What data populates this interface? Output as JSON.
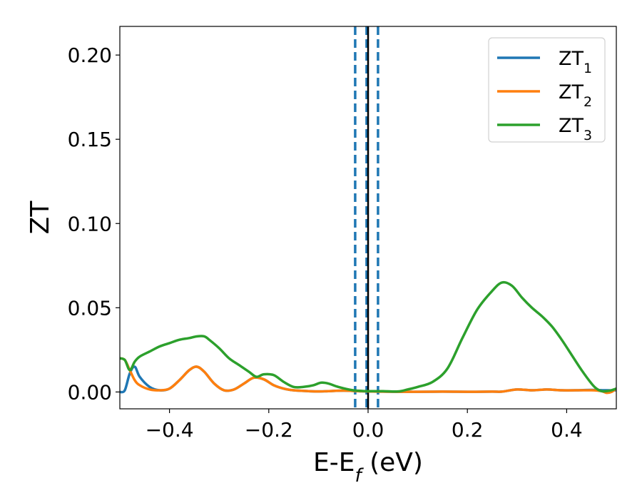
{
  "chart_data": {
    "type": "line",
    "title": "",
    "xlabel": "E-E",
    "xlabel_sub": "f",
    "xlabel_unit": " (eV)",
    "ylabel": "ZT",
    "xlim": [
      -0.5,
      0.5
    ],
    "ylim": [
      -0.01,
      0.217
    ],
    "xticks": [
      -0.4,
      -0.2,
      0.0,
      0.2,
      0.4
    ],
    "xtick_labels": [
      "−0.4",
      "−0.2",
      "0.0",
      "0.2",
      "0.4"
    ],
    "yticks": [
      0.0,
      0.05,
      0.1,
      0.15,
      0.2
    ],
    "ytick_labels": [
      "0.00",
      "0.05",
      "0.10",
      "0.15",
      "0.20"
    ],
    "grid": false,
    "legend_position": "top-right",
    "vertical_lines": [
      {
        "x": -0.026,
        "style": "dashed",
        "color": "#1f77b4"
      },
      {
        "x": -0.003,
        "style": "dashed",
        "color": "#1f77b4"
      },
      {
        "x": 0.0,
        "style": "solid",
        "color": "#000000"
      },
      {
        "x": 0.02,
        "style": "dashed",
        "color": "#1f77b4"
      }
    ],
    "series": [
      {
        "name": "ZT",
        "name_sub": "1",
        "color": "#1f77b4",
        "x": [
          -0.5,
          -0.49,
          -0.48,
          -0.47,
          -0.46,
          -0.44,
          -0.42,
          -0.4,
          -0.38,
          -0.36,
          -0.345,
          -0.33,
          -0.31,
          -0.29,
          -0.27,
          -0.25,
          -0.23,
          -0.21,
          -0.19,
          -0.17,
          -0.15,
          -0.12,
          -0.1,
          -0.08,
          -0.05,
          -0.02,
          0.0,
          0.03,
          0.06,
          0.1,
          0.15,
          0.2,
          0.25,
          0.27,
          0.3,
          0.33,
          0.36,
          0.39,
          0.42,
          0.45,
          0.48,
          0.5
        ],
        "y": [
          0.0,
          0.001,
          0.011,
          0.015,
          0.009,
          0.003,
          0.001,
          0.002,
          0.007,
          0.013,
          0.015,
          0.012,
          0.005,
          0.001,
          0.0015,
          0.005,
          0.0085,
          0.0075,
          0.004,
          0.002,
          0.001,
          0.0005,
          0.0003,
          0.0005,
          0.0008,
          0.0005,
          0.0003,
          0.0002,
          0.0001,
          0.0001,
          0.0002,
          0.0001,
          0.0002,
          0.0002,
          0.0015,
          0.001,
          0.0015,
          0.001,
          0.001,
          0.0012,
          0.001,
          0.001
        ]
      },
      {
        "name": "ZT",
        "name_sub": "2",
        "color": "#ff7f0e",
        "x": [
          -0.5,
          -0.49,
          -0.48,
          -0.47,
          -0.46,
          -0.44,
          -0.42,
          -0.4,
          -0.38,
          -0.36,
          -0.345,
          -0.33,
          -0.31,
          -0.29,
          -0.27,
          -0.25,
          -0.23,
          -0.21,
          -0.19,
          -0.17,
          -0.15,
          -0.12,
          -0.1,
          -0.08,
          -0.05,
          -0.02,
          0.0,
          0.03,
          0.06,
          0.1,
          0.15,
          0.2,
          0.25,
          0.27,
          0.3,
          0.33,
          0.36,
          0.39,
          0.42,
          0.45,
          0.47,
          0.48,
          0.49,
          0.5
        ],
        "y": [
          0.02,
          0.019,
          0.013,
          0.007,
          0.004,
          0.0015,
          0.001,
          0.002,
          0.007,
          0.013,
          0.015,
          0.012,
          0.005,
          0.001,
          0.0015,
          0.005,
          0.0085,
          0.0075,
          0.004,
          0.002,
          0.001,
          0.0005,
          0.0003,
          0.0005,
          0.0008,
          0.0005,
          0.0003,
          0.0002,
          0.0001,
          0.0001,
          0.0002,
          0.0001,
          0.0002,
          0.0002,
          0.0015,
          0.001,
          0.0015,
          0.001,
          0.001,
          0.001,
          0.0005,
          -0.0005,
          0.0,
          0.002
        ]
      },
      {
        "name": "ZT",
        "name_sub": "3",
        "color": "#2ca02c",
        "x": [
          -0.5,
          -0.49,
          -0.48,
          -0.47,
          -0.46,
          -0.44,
          -0.42,
          -0.4,
          -0.38,
          -0.36,
          -0.345,
          -0.33,
          -0.32,
          -0.3,
          -0.28,
          -0.26,
          -0.24,
          -0.225,
          -0.21,
          -0.19,
          -0.17,
          -0.15,
          -0.13,
          -0.11,
          -0.095,
          -0.08,
          -0.06,
          -0.03,
          0.0,
          0.03,
          0.06,
          0.08,
          0.1,
          0.13,
          0.16,
          0.19,
          0.22,
          0.25,
          0.27,
          0.29,
          0.31,
          0.33,
          0.35,
          0.37,
          0.39,
          0.41,
          0.43,
          0.45,
          0.46,
          0.47,
          0.48,
          0.49,
          0.5
        ],
        "y": [
          0.02,
          0.019,
          0.013,
          0.018,
          0.021,
          0.024,
          0.027,
          0.029,
          0.031,
          0.032,
          0.033,
          0.033,
          0.031,
          0.026,
          0.02,
          0.016,
          0.012,
          0.009,
          0.0105,
          0.01,
          0.006,
          0.003,
          0.003,
          0.004,
          0.0055,
          0.005,
          0.003,
          0.001,
          0.0005,
          0.0005,
          0.0003,
          0.0015,
          0.003,
          0.006,
          0.014,
          0.032,
          0.049,
          0.06,
          0.065,
          0.063,
          0.056,
          0.05,
          0.045,
          0.039,
          0.031,
          0.022,
          0.013,
          0.005,
          0.002,
          0.0005,
          0.0005,
          0.001,
          0.002
        ]
      }
    ]
  }
}
